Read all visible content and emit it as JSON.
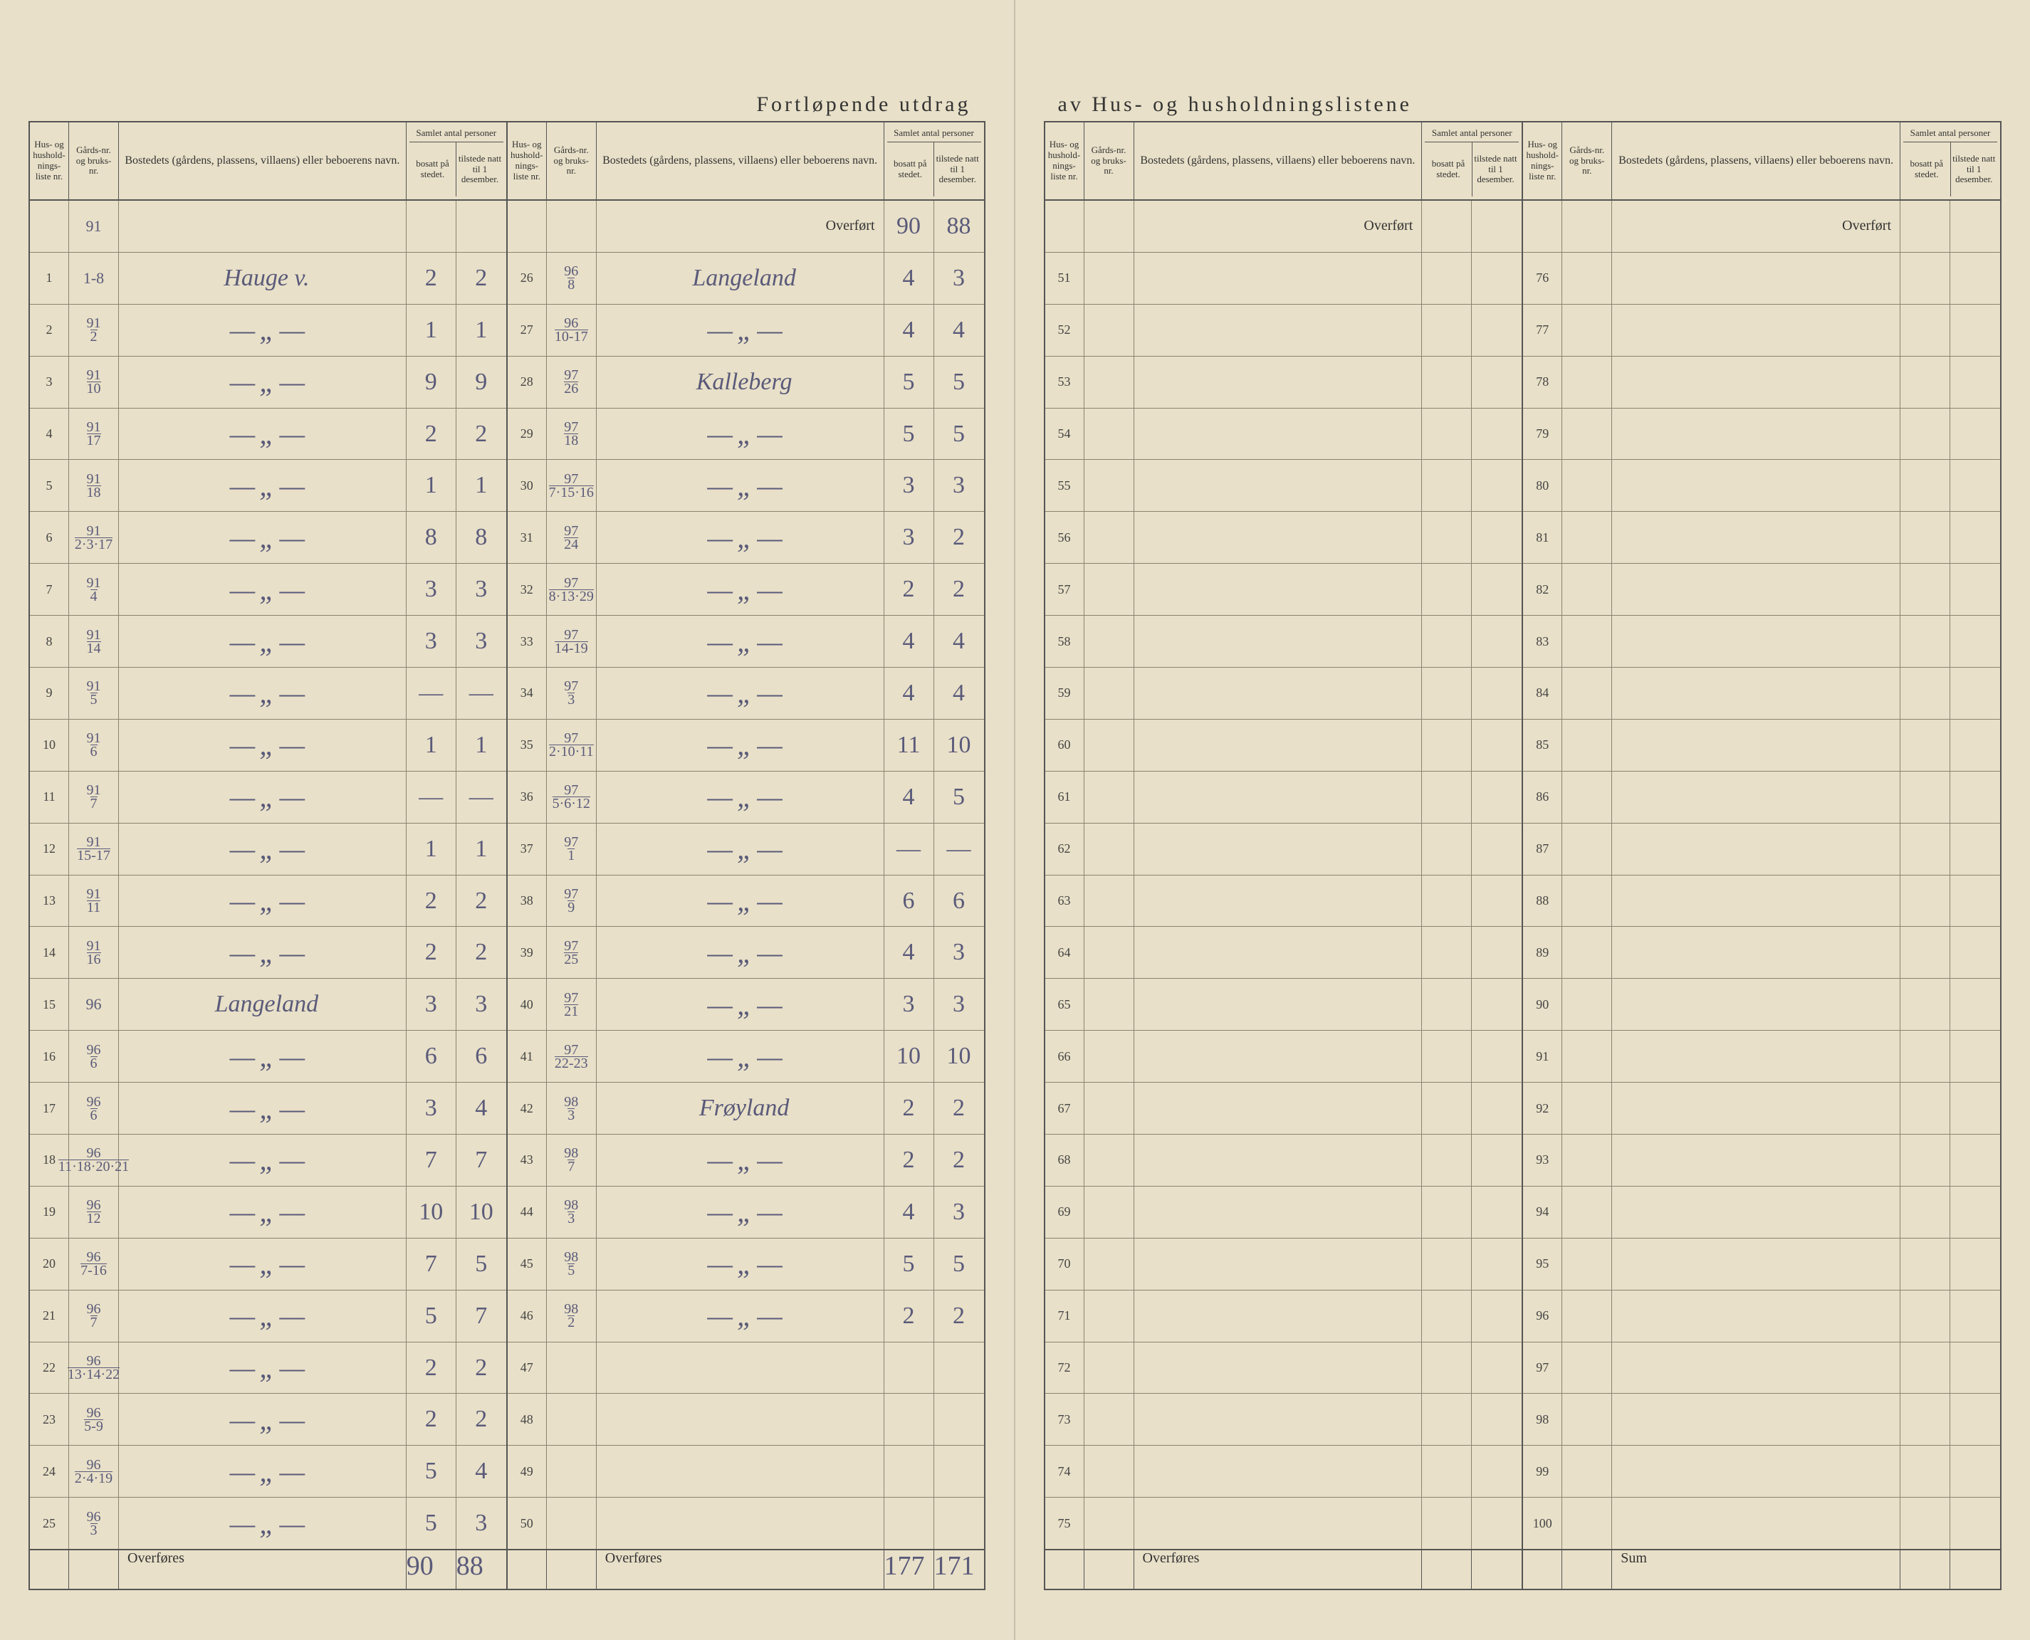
{
  "colors": {
    "paper": "#e8e0c8",
    "rule": "#555555",
    "faint_rule": "#8a8470",
    "print_text": "#333333",
    "handwriting": "#5a5a7a",
    "background": "#5a5a5a"
  },
  "typography": {
    "print_family": "Georgia, 'Times New Roman', serif",
    "script_family": "'Brush Script MT', cursive",
    "title_size_pt": 30,
    "header_size_pt": 15,
    "handwriting_size_pt": 34
  },
  "title_left": "Fortløpende utdrag",
  "title_right": "av Hus- og husholdningslistene",
  "headers": {
    "liste": "Hus- og hushold-nings-liste nr.",
    "gard": "Gårds-nr. og bruks-nr.",
    "navn": "Bostedets (gårdens, plassens, villaens) eller beboerens navn.",
    "samlet": "Samlet antal personer",
    "bosatt": "bosatt på stedet.",
    "tilstede": "tilstede natt til 1 desember."
  },
  "overfort": "Overført",
  "overfores": "Overføres",
  "sum": "Sum",
  "panels": [
    {
      "first_row_label": "",
      "first_gard": "91",
      "rows": [
        {
          "n": "1",
          "gard": "1-8",
          "navn": "Hauge v.",
          "b": "2",
          "t": "2"
        },
        {
          "n": "2",
          "gard": "91/2",
          "navn": "— \" —",
          "b": "1",
          "t": "1"
        },
        {
          "n": "3",
          "gard": "91/10",
          "navn": "— \" —",
          "b": "9",
          "t": "9"
        },
        {
          "n": "4",
          "gard": "91/17",
          "navn": "— \" —",
          "b": "2",
          "t": "2"
        },
        {
          "n": "5",
          "gard": "91/18",
          "navn": "— \" —",
          "b": "1",
          "t": "1"
        },
        {
          "n": "6",
          "gard": "91/2·3·17",
          "navn": "— \" —",
          "b": "8",
          "t": "8"
        },
        {
          "n": "7",
          "gard": "91/4",
          "navn": "— \" —",
          "b": "3",
          "t": "3"
        },
        {
          "n": "8",
          "gard": "91/14",
          "navn": "— \" —",
          "b": "3",
          "t": "3"
        },
        {
          "n": "9",
          "gard": "91/5",
          "navn": "— \" —",
          "b": "—",
          "t": "—"
        },
        {
          "n": "10",
          "gard": "91/6",
          "navn": "— \" —",
          "b": "1",
          "t": "1"
        },
        {
          "n": "11",
          "gard": "91/7",
          "navn": "— \" —",
          "b": "—",
          "t": "—"
        },
        {
          "n": "12",
          "gard": "91/15-17",
          "navn": "— \" —",
          "b": "1",
          "t": "1"
        },
        {
          "n": "13",
          "gard": "91/11",
          "navn": "— \" —",
          "b": "2",
          "t": "2"
        },
        {
          "n": "14",
          "gard": "91/16",
          "navn": "— \" —",
          "b": "2",
          "t": "2"
        },
        {
          "n": "15",
          "gard": "96",
          "navn": "Langeland",
          "b": "3",
          "t": "3"
        },
        {
          "n": "16",
          "gard": "96/6",
          "navn": "— \" —",
          "b": "6",
          "t": "6"
        },
        {
          "n": "17",
          "gard": "96/6",
          "navn": "— \" —",
          "b": "3",
          "t": "4"
        },
        {
          "n": "18",
          "gard": "96/11·18·20·21",
          "navn": "— \" —",
          "b": "7",
          "t": "7"
        },
        {
          "n": "19",
          "gard": "96/12",
          "navn": "— \" —",
          "b": "10",
          "t": "10"
        },
        {
          "n": "20",
          "gard": "96/7-16",
          "navn": "— \" —",
          "b": "7",
          "t": "5"
        },
        {
          "n": "21",
          "gard": "96/7",
          "navn": "— \" —",
          "b": "5",
          "t": "7"
        },
        {
          "n": "22",
          "gard": "96/13·14·22",
          "navn": "— \" —",
          "b": "2",
          "t": "2"
        },
        {
          "n": "23",
          "gard": "96/5-9",
          "navn": "— \" —",
          "b": "2",
          "t": "2"
        },
        {
          "n": "24",
          "gard": "96/2·4·19",
          "navn": "— \" —",
          "b": "5",
          "t": "4"
        },
        {
          "n": "25",
          "gard": "96/3",
          "navn": "— \" —",
          "b": "5",
          "t": "3"
        }
      ],
      "carry_b": "90",
      "carry_t": "88"
    },
    {
      "overfort_b": "90",
      "overfort_t": "88",
      "rows": [
        {
          "n": "26",
          "gard": "96/8",
          "navn": "Langeland",
          "b": "4",
          "t": "3"
        },
        {
          "n": "27",
          "gard": "96/10-17",
          "navn": "— \" —",
          "b": "4",
          "t": "4"
        },
        {
          "n": "28",
          "gard": "97/26",
          "navn": "Kalleberg",
          "b": "5",
          "t": "5"
        },
        {
          "n": "29",
          "gard": "97/18",
          "navn": "— \" —",
          "b": "5",
          "t": "5"
        },
        {
          "n": "30",
          "gard": "97/7·15·16",
          "navn": "— \" —",
          "b": "3",
          "t": "3"
        },
        {
          "n": "31",
          "gard": "97/24",
          "navn": "— \" —",
          "b": "3",
          "t": "2"
        },
        {
          "n": "32",
          "gard": "97/8·13·29",
          "navn": "— \" —",
          "b": "2",
          "t": "2"
        },
        {
          "n": "33",
          "gard": "97/14-19",
          "navn": "— \" —",
          "b": "4",
          "t": "4"
        },
        {
          "n": "34",
          "gard": "97/3",
          "navn": "— \" —",
          "b": "4",
          "t": "4"
        },
        {
          "n": "35",
          "gard": "97/2·10·11",
          "navn": "— \" —",
          "b": "11",
          "t": "10"
        },
        {
          "n": "36",
          "gard": "97/5·6·12",
          "navn": "— \" —",
          "b": "4",
          "t": "5"
        },
        {
          "n": "37",
          "gard": "97/1",
          "navn": "— \" —",
          "b": "—",
          "t": "—"
        },
        {
          "n": "38",
          "gard": "97/9",
          "navn": "— \" —",
          "b": "6",
          "t": "6"
        },
        {
          "n": "39",
          "gard": "97/25",
          "navn": "— \" —",
          "b": "4",
          "t": "3"
        },
        {
          "n": "40",
          "gard": "97/21",
          "navn": "— \" —",
          "b": "3",
          "t": "3"
        },
        {
          "n": "41",
          "gard": "97/22-23",
          "navn": "— \" —",
          "b": "10",
          "t": "10"
        },
        {
          "n": "42",
          "gard": "98/3",
          "navn": "Frøyland",
          "b": "2",
          "t": "2"
        },
        {
          "n": "43",
          "gard": "98/7",
          "navn": "— \" —",
          "b": "2",
          "t": "2"
        },
        {
          "n": "44",
          "gard": "98/3",
          "navn": "— \" —",
          "b": "4",
          "t": "3"
        },
        {
          "n": "45",
          "gard": "98/5",
          "navn": "— \" —",
          "b": "5",
          "t": "5"
        },
        {
          "n": "46",
          "gard": "98/2",
          "navn": "— \" —",
          "b": "2",
          "t": "2"
        },
        {
          "n": "47",
          "gard": "",
          "navn": "",
          "b": "",
          "t": ""
        },
        {
          "n": "48",
          "gard": "",
          "navn": "",
          "b": "",
          "t": ""
        },
        {
          "n": "49",
          "gard": "",
          "navn": "",
          "b": "",
          "t": ""
        },
        {
          "n": "50",
          "gard": "",
          "navn": "",
          "b": "",
          "t": ""
        }
      ],
      "carry_b": "177",
      "carry_t": "171"
    },
    {
      "overfort_b": "",
      "overfort_t": "",
      "rows": [
        {
          "n": "51"
        },
        {
          "n": "52"
        },
        {
          "n": "53"
        },
        {
          "n": "54"
        },
        {
          "n": "55"
        },
        {
          "n": "56"
        },
        {
          "n": "57"
        },
        {
          "n": "58"
        },
        {
          "n": "59"
        },
        {
          "n": "60"
        },
        {
          "n": "61"
        },
        {
          "n": "62"
        },
        {
          "n": "63"
        },
        {
          "n": "64"
        },
        {
          "n": "65"
        },
        {
          "n": "66"
        },
        {
          "n": "67"
        },
        {
          "n": "68"
        },
        {
          "n": "69"
        },
        {
          "n": "70"
        },
        {
          "n": "71"
        },
        {
          "n": "72"
        },
        {
          "n": "73"
        },
        {
          "n": "74"
        },
        {
          "n": "75"
        }
      ],
      "carry_b": "",
      "carry_t": ""
    },
    {
      "overfort_b": "",
      "overfort_t": "",
      "rows": [
        {
          "n": "76"
        },
        {
          "n": "77"
        },
        {
          "n": "78"
        },
        {
          "n": "79"
        },
        {
          "n": "80"
        },
        {
          "n": "81"
        },
        {
          "n": "82"
        },
        {
          "n": "83"
        },
        {
          "n": "84"
        },
        {
          "n": "85"
        },
        {
          "n": "86"
        },
        {
          "n": "87"
        },
        {
          "n": "88"
        },
        {
          "n": "89"
        },
        {
          "n": "90"
        },
        {
          "n": "91"
        },
        {
          "n": "92"
        },
        {
          "n": "93"
        },
        {
          "n": "94"
        },
        {
          "n": "95"
        },
        {
          "n": "96"
        },
        {
          "n": "97"
        },
        {
          "n": "98"
        },
        {
          "n": "99"
        },
        {
          "n": "100"
        }
      ],
      "sum_label": "Sum",
      "carry_b": "",
      "carry_t": ""
    }
  ]
}
